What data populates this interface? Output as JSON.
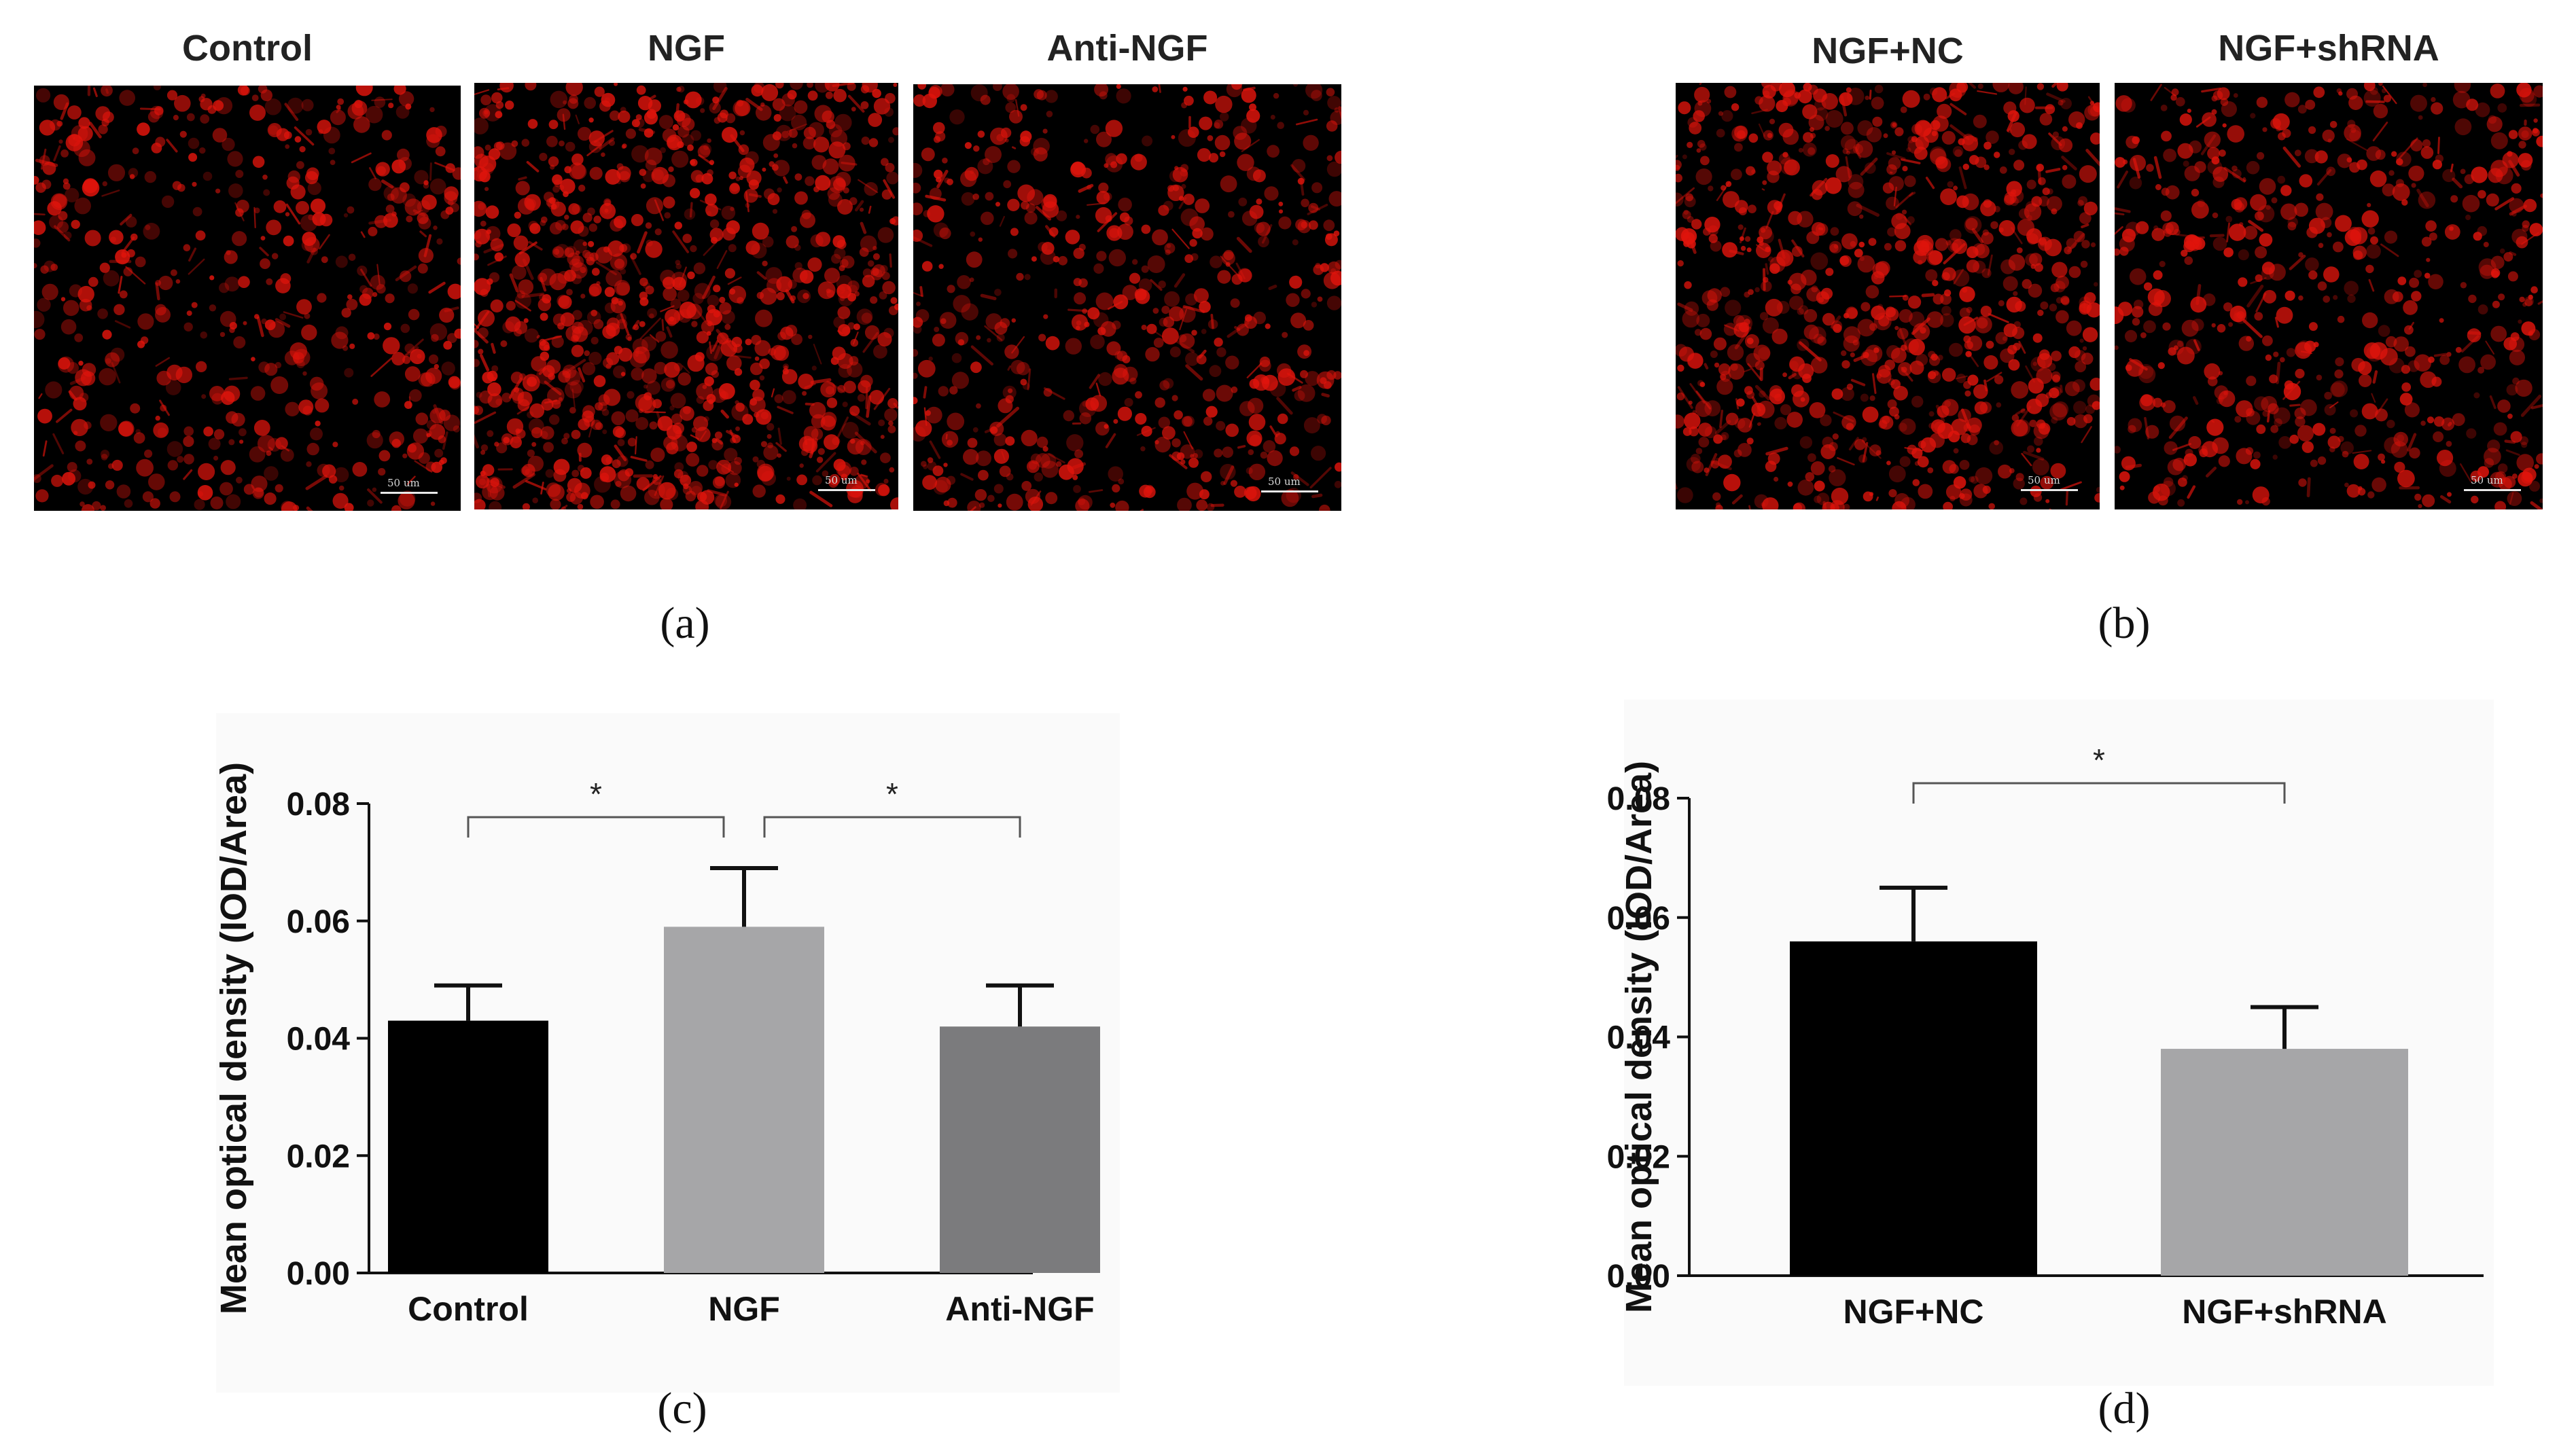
{
  "panels": {
    "a": {
      "caption": "(a)",
      "images": [
        {
          "title": "Control",
          "scale": "50 um"
        },
        {
          "title": "NGF",
          "scale": "50 um"
        },
        {
          "title": "Anti-NGF",
          "scale": "50 um"
        }
      ]
    },
    "b": {
      "caption": "(b)",
      "images": [
        {
          "title": "NGF+NC",
          "scale": "50 um"
        },
        {
          "title": "NGF+shRNA",
          "scale": "50 um"
        }
      ]
    },
    "c": {
      "caption": "(c)"
    },
    "d": {
      "caption": "(d)"
    }
  },
  "colors": {
    "fluorescence": "#e0140c",
    "bar_black": "#000000",
    "bar_light_gray": "#a6a6a8",
    "bar_gray": "#7b7b7d"
  },
  "chart_data": [
    {
      "type": "bar",
      "panel": "c",
      "categories": [
        "Control",
        "NGF",
        "Anti-NGF"
      ],
      "values": [
        0.043,
        0.059,
        0.042
      ],
      "errors": [
        0.006,
        0.01,
        0.007
      ],
      "bar_colors": [
        "#000000",
        "#a6a6a8",
        "#7b7b7d"
      ],
      "ylabel": "Mean optical density  (IOD/Area)",
      "ylim": [
        0,
        0.08
      ],
      "yticks": [
        "0.00",
        "0.02",
        "0.04",
        "0.06",
        "0.08"
      ],
      "significance": [
        {
          "from": 0,
          "to": 1,
          "label": "*"
        },
        {
          "from": 1,
          "to": 2,
          "label": "*"
        }
      ]
    },
    {
      "type": "bar",
      "panel": "d",
      "categories": [
        "NGF+NC",
        "NGF+shRNA"
      ],
      "values": [
        0.056,
        0.038
      ],
      "errors": [
        0.009,
        0.007
      ],
      "bar_colors": [
        "#000000",
        "#a6a6a8"
      ],
      "ylabel": "Mean optical density  (IOD/Area)",
      "ylim": [
        0,
        0.08
      ],
      "yticks": [
        "0.00",
        "0.02",
        "0.04",
        "0.06",
        "0.08"
      ],
      "significance": [
        {
          "from": 0,
          "to": 1,
          "label": "*"
        }
      ]
    }
  ]
}
